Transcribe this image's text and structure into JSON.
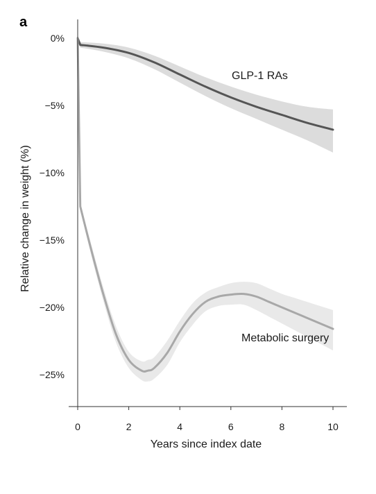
{
  "panel_label": "a",
  "chart_data": {
    "type": "line",
    "title": "",
    "xlabel": "Years since index date",
    "ylabel": "Relative change in weight (%)",
    "xlim": [
      0,
      10
    ],
    "ylim": [
      -27.5,
      0.5
    ],
    "x_ticks": [
      0,
      2,
      4,
      6,
      8,
      10
    ],
    "x_tick_labels": [
      "0",
      "2",
      "4",
      "6",
      "8",
      "10"
    ],
    "y_ticks": [
      0,
      -5,
      -10,
      -15,
      -20,
      -25
    ],
    "y_tick_labels": [
      "0%",
      "−5%",
      "−10%",
      "−15%",
      "−20%",
      "−25%"
    ],
    "grid": false,
    "series": [
      {
        "name": "GLP-1 RAs",
        "color": "#555555",
        "band_color": "#dcdcdc",
        "x": [
          0,
          0.1,
          1,
          2,
          3,
          4,
          5,
          6,
          7,
          8,
          9,
          10
        ],
        "y": [
          0,
          -0.5,
          -0.7,
          -1.1,
          -1.8,
          -2.7,
          -3.6,
          -4.4,
          -5.1,
          -5.7,
          -6.3,
          -6.8
        ],
        "lower": [
          -0.2,
          -0.7,
          -1.0,
          -1.5,
          -2.3,
          -3.3,
          -4.3,
          -5.2,
          -6.0,
          -6.8,
          -7.6,
          -8.5
        ],
        "upper": [
          0.2,
          -0.3,
          -0.4,
          -0.7,
          -1.3,
          -2.1,
          -2.9,
          -3.6,
          -4.2,
          -4.7,
          -5.1,
          -5.3
        ]
      },
      {
        "name": "Metabolic surgery",
        "color": "#a8a8a8",
        "band_color": "#e9e9e9",
        "x": [
          0,
          0.1,
          0.5,
          1,
          1.5,
          2,
          2.5,
          2.75,
          3,
          3.5,
          4,
          4.5,
          5,
          5.5,
          6,
          6.5,
          7,
          7.5,
          8,
          8.5,
          9,
          9.5,
          10
        ],
        "y": [
          0,
          -12.5,
          -15.5,
          -19.0,
          -22.0,
          -23.9,
          -24.7,
          -24.7,
          -24.5,
          -23.4,
          -21.8,
          -20.5,
          -19.6,
          -19.2,
          -19.05,
          -19.0,
          -19.2,
          -19.6,
          -20.0,
          -20.4,
          -20.8,
          -21.2,
          -21.6
        ],
        "lower": [
          -0.2,
          -12.7,
          -15.9,
          -19.5,
          -22.6,
          -24.5,
          -25.4,
          -25.5,
          -25.3,
          -24.3,
          -22.6,
          -21.3,
          -20.3,
          -19.9,
          -19.8,
          -19.8,
          -20.2,
          -20.7,
          -21.2,
          -21.7,
          -22.2,
          -22.7,
          -23.2
        ],
        "upper": [
          0.2,
          -12.3,
          -15.1,
          -18.5,
          -21.4,
          -23.3,
          -24.0,
          -23.9,
          -23.7,
          -22.5,
          -21.0,
          -19.7,
          -18.9,
          -18.5,
          -18.2,
          -18.1,
          -18.2,
          -18.6,
          -19.0,
          -19.3,
          -19.6,
          -19.9,
          -20.2
        ]
      }
    ]
  }
}
